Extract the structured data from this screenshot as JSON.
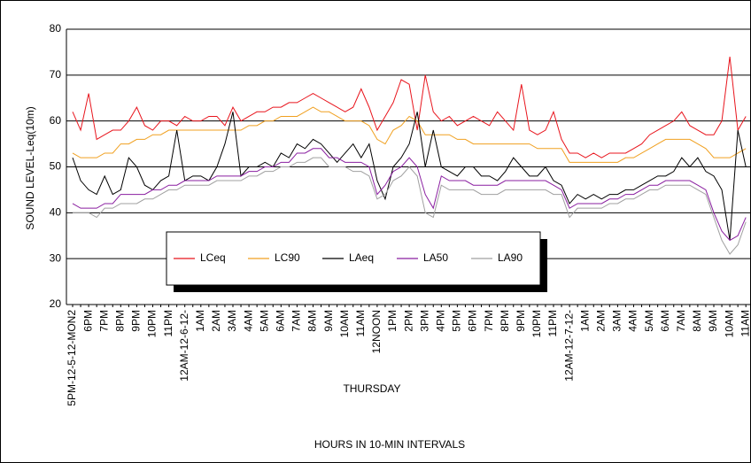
{
  "chart_data": {
    "type": "line",
    "ylabel": "SOUND LEVEL-Leq(10m)",
    "xlabel": "HOURS IN 10-MIN INTERVALS",
    "annotation": "THURSDAY",
    "categories": [
      "5PM-12-5-12-MON2",
      null,
      "6PM",
      null,
      "7PM",
      null,
      "8PM",
      null,
      "9PM",
      null,
      "10PM",
      null,
      "11PM",
      null,
      "12AM-12-6-12-",
      null,
      "1AM",
      null,
      "2AM",
      null,
      "3AM",
      null,
      "4AM",
      null,
      "5AM",
      null,
      "6AM",
      null,
      "7AM",
      null,
      "8AM",
      null,
      "9AM",
      null,
      "10AM",
      null,
      "11AM",
      null,
      "12NOON",
      null,
      "1PM",
      null,
      "2PM",
      null,
      "3PM",
      null,
      "4PM",
      null,
      "5PM",
      null,
      "6PM",
      null,
      "7PM",
      null,
      "8PM",
      null,
      "9PM",
      null,
      "10PM",
      null,
      "11PM",
      null,
      "12AM-12-7-12-",
      null,
      "1AM",
      null,
      "2AM",
      null,
      "3AM",
      null,
      "4AM",
      null,
      "5AM",
      null,
      "6AM",
      null,
      "7AM",
      null,
      "8AM",
      null,
      "9AM",
      null,
      "10AM",
      null,
      "11AM"
    ],
    "series": [
      {
        "name": "LCeq",
        "color": "#e8141c",
        "values": [
          62,
          58,
          66,
          56,
          57,
          58,
          58,
          60,
          63,
          59,
          58,
          60,
          60,
          59,
          61,
          60,
          60,
          61,
          61,
          59,
          63,
          60,
          61,
          62,
          62,
          63,
          63,
          64,
          64,
          65,
          66,
          65,
          64,
          63,
          62,
          63,
          67,
          63,
          58,
          61,
          64,
          69,
          68,
          58,
          70,
          62,
          60,
          61,
          59,
          60,
          61,
          60,
          59,
          62,
          60,
          58,
          68,
          58,
          57,
          58,
          62,
          56,
          53,
          53,
          52,
          53,
          52,
          53,
          53,
          53,
          54,
          55,
          57,
          58,
          59,
          60,
          62,
          59,
          58,
          57,
          57,
          60,
          74,
          58,
          61
        ]
      },
      {
        "name": "LC90",
        "color": "#f0a020",
        "values": [
          53,
          52,
          52,
          52,
          53,
          53,
          55,
          55,
          56,
          56,
          57,
          57,
          58,
          58,
          58,
          58,
          58,
          58,
          58,
          58,
          58,
          58,
          59,
          59,
          60,
          60,
          61,
          61,
          61,
          62,
          63,
          62,
          62,
          61,
          60,
          60,
          60,
          59,
          56,
          55,
          58,
          59,
          61,
          60,
          57,
          57,
          57,
          57,
          56,
          56,
          55,
          55,
          55,
          55,
          55,
          55,
          55,
          55,
          54,
          54,
          54,
          54,
          51,
          51,
          51,
          51,
          51,
          51,
          51,
          52,
          52,
          53,
          54,
          55,
          56,
          56,
          56,
          56,
          55,
          54,
          52,
          52,
          52,
          53,
          54
        ]
      },
      {
        "name": "LAeq",
        "color": "#000000",
        "values": [
          52,
          47,
          45,
          44,
          48,
          44,
          45,
          52,
          50,
          46,
          45,
          47,
          48,
          58,
          47,
          48,
          48,
          47,
          50,
          55,
          62,
          48,
          50,
          50,
          51,
          50,
          53,
          52,
          55,
          54,
          56,
          55,
          53,
          51,
          53,
          55,
          52,
          55,
          47,
          43,
          50,
          52,
          55,
          62,
          50,
          58,
          50,
          49,
          48,
          50,
          50,
          48,
          48,
          47,
          49,
          52,
          50,
          48,
          48,
          50,
          47,
          46,
          42,
          44,
          43,
          44,
          43,
          44,
          44,
          45,
          45,
          46,
          47,
          48,
          48,
          49,
          52,
          50,
          52,
          49,
          48,
          45,
          34,
          58,
          50
        ]
      },
      {
        "name": "LA50",
        "color": "#8a1fa0",
        "values": [
          42,
          41,
          41,
          41,
          42,
          42,
          44,
          44,
          44,
          44,
          45,
          45,
          46,
          46,
          47,
          47,
          47,
          47,
          48,
          48,
          48,
          48,
          49,
          49,
          50,
          50,
          51,
          51,
          53,
          53,
          54,
          54,
          52,
          52,
          51,
          51,
          51,
          50,
          44,
          46,
          49,
          50,
          52,
          50,
          44,
          41,
          48,
          47,
          47,
          47,
          46,
          46,
          46,
          46,
          47,
          47,
          47,
          47,
          47,
          47,
          46,
          45,
          41,
          42,
          42,
          42,
          42,
          43,
          43,
          44,
          44,
          45,
          46,
          46,
          47,
          47,
          47,
          47,
          46,
          45,
          40,
          36,
          34,
          35,
          39
        ]
      },
      {
        "name": "LA90",
        "color": "#a0a0a0",
        "values": [
          40,
          40,
          40,
          39,
          41,
          41,
          42,
          42,
          42,
          43,
          43,
          44,
          45,
          45,
          46,
          46,
          46,
          46,
          47,
          47,
          47,
          47,
          48,
          48,
          49,
          49,
          50,
          50,
          51,
          51,
          52,
          52,
          50,
          50,
          50,
          49,
          49,
          48,
          43,
          44,
          47,
          48,
          50,
          48,
          40,
          39,
          46,
          45,
          45,
          45,
          45,
          44,
          44,
          44,
          45,
          45,
          45,
          45,
          45,
          45,
          44,
          44,
          39,
          41,
          41,
          41,
          41,
          42,
          42,
          43,
          43,
          44,
          45,
          45,
          46,
          46,
          46,
          46,
          45,
          44,
          39,
          34,
          31,
          33,
          38
        ]
      }
    ],
    "ylim": [
      20,
      80
    ],
    "yticks": [
      20,
      30,
      40,
      50,
      60,
      70,
      80
    ],
    "grid": true
  }
}
